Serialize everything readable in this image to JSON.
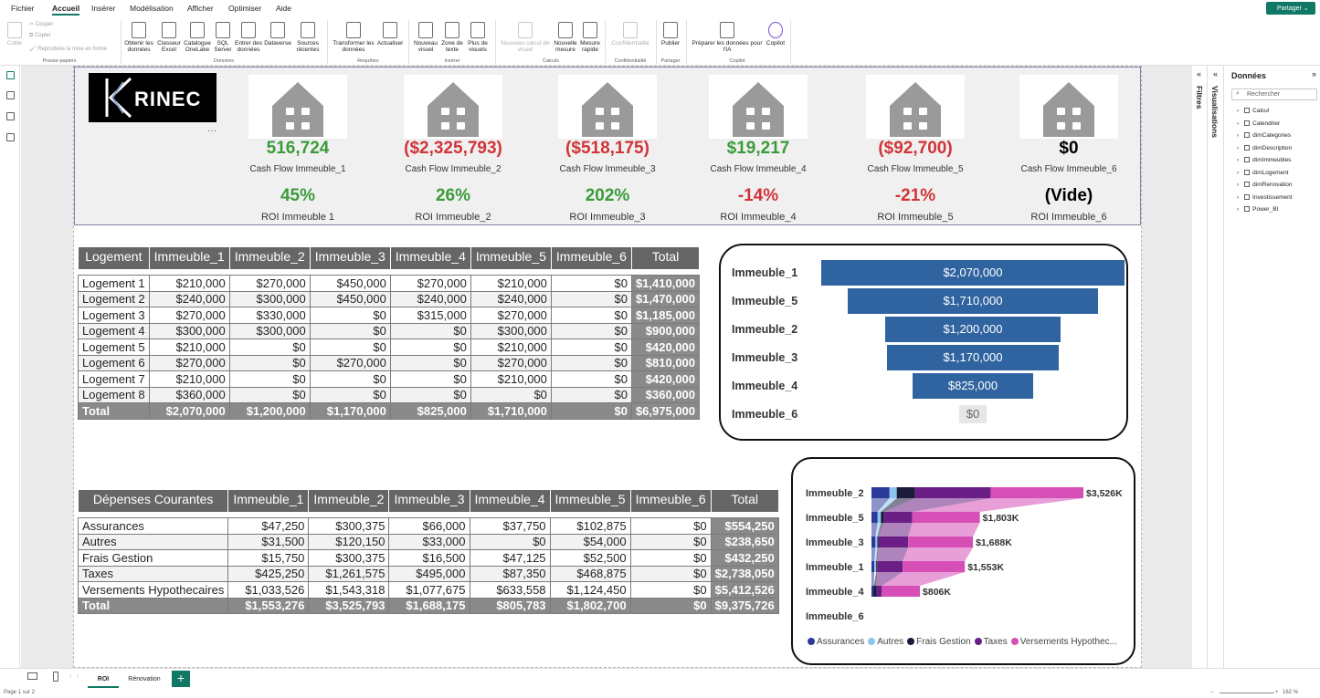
{
  "menu": {
    "items": [
      "Fichier",
      "Accueil",
      "Insérer",
      "Modélisation",
      "Afficher",
      "Optimiser",
      "Aide"
    ],
    "share": "Partager"
  },
  "ribbon": {
    "clipboard": {
      "paste": "Coller",
      "cut": "Couper",
      "copy": "Copier",
      "format": "Reproduire la mise en forme",
      "group": "Presse-papiers"
    },
    "data": {
      "get": "Obtenir les données",
      "excel": "Classeur Excel",
      "onelake": "Catalogue OneLake",
      "sql": "SQL Server",
      "enter": "Entrer des données",
      "dataverse": "Dataverse",
      "recent": "Sources récentes",
      "group": "Données"
    },
    "queries": {
      "transform": "Transformer les données",
      "refresh": "Actualiser",
      "group": "Requêtes"
    },
    "insert": {
      "visual": "Nouveau visuel",
      "textbox": "Zone de texte",
      "more": "Plus de visuels",
      "group": "Insérer"
    },
    "calc": {
      "newcalc": "Nouveau calcul de visuel",
      "measure": "Nouvelle mesure",
      "quick": "Mesure rapide",
      "group": "Calculs"
    },
    "sens": {
      "label": "Confidentialité",
      "group": "Confidentialité"
    },
    "share": {
      "publish": "Publier",
      "group": "Partager"
    },
    "copilot": {
      "prep": "Préparer les données pour l'IA",
      "copilot": "Copilot",
      "group": "Copilot"
    }
  },
  "logo": {
    "text": "RINEC"
  },
  "kpis": [
    {
      "cash": "516,724",
      "cash_label": "Cash Flow Immeuble_1",
      "roi": "45%",
      "roi_label": "ROI Immeuble  1"
    },
    {
      "cash": "($2,325,793)",
      "cash_label": "Cash Flow Immeuble_2",
      "roi": "26%",
      "roi_label": "ROI Immeuble_2"
    },
    {
      "cash": "($518,175)",
      "cash_label": "Cash Flow Immeuble_3",
      "roi": "202%",
      "roi_label": "ROI Immeuble_3"
    },
    {
      "cash": "$19,217",
      "cash_label": "Cash Flow Immeuble_4",
      "roi": "-14%",
      "roi_label": "ROI Immeuble_4"
    },
    {
      "cash": "($92,700)",
      "cash_label": "Cash Flow Immeuble_5",
      "roi": "-21%",
      "roi_label": "ROI Immeuble_5"
    },
    {
      "cash": "$0",
      "cash_label": "Cash Flow Immeuble_6",
      "roi": "(Vide)",
      "roi_label": "ROI Immeuble_6"
    }
  ],
  "colors": {
    "positive": "#3b9b3b",
    "negative": "#d13438",
    "funnel": "#2f64a0",
    "header": "#666666",
    "accent": "#117865"
  },
  "logement_table": {
    "headers": [
      "Logement",
      "Immeuble_1",
      "Immeuble_2",
      "Immeuble_3",
      "Immeuble_4",
      "Immeuble_5",
      "Immeuble_6",
      "Total"
    ],
    "rows": [
      [
        "Logement 1",
        "$210,000",
        "$270,000",
        "$450,000",
        "$270,000",
        "$210,000",
        "$0",
        "$1,410,000"
      ],
      [
        "Logement 2",
        "$240,000",
        "$300,000",
        "$450,000",
        "$240,000",
        "$240,000",
        "$0",
        "$1,470,000"
      ],
      [
        "Logement 3",
        "$270,000",
        "$330,000",
        "$0",
        "$315,000",
        "$270,000",
        "$0",
        "$1,185,000"
      ],
      [
        "Logement 4",
        "$300,000",
        "$300,000",
        "$0",
        "$0",
        "$300,000",
        "$0",
        "$900,000"
      ],
      [
        "Logement 5",
        "$210,000",
        "$0",
        "$0",
        "$0",
        "$210,000",
        "$0",
        "$420,000"
      ],
      [
        "Logement 6",
        "$270,000",
        "$0",
        "$270,000",
        "$0",
        "$270,000",
        "$0",
        "$810,000"
      ],
      [
        "Logement 7",
        "$210,000",
        "$0",
        "$0",
        "$0",
        "$210,000",
        "$0",
        "$420,000"
      ],
      [
        "Logement 8",
        "$360,000",
        "$0",
        "$0",
        "$0",
        "$0",
        "$0",
        "$360,000"
      ]
    ],
    "total": [
      "Total",
      "$2,070,000",
      "$1,200,000",
      "$1,170,000",
      "$825,000",
      "$1,710,000",
      "$0",
      "$6,975,000"
    ]
  },
  "depenses_table": {
    "headers": [
      "Dépenses Courantes",
      "Immeuble_1",
      "Immeuble_2",
      "Immeuble_3",
      "Immeuble_4",
      "Immeuble_5",
      "Immeuble_6",
      "Total"
    ],
    "rows": [
      [
        "Assurances",
        "$47,250",
        "$300,375",
        "$66,000",
        "$37,750",
        "$102,875",
        "$0",
        "$554,250"
      ],
      [
        "Autres",
        "$31,500",
        "$120,150",
        "$33,000",
        "$0",
        "$54,000",
        "$0",
        "$238,650"
      ],
      [
        "Frais Gestion",
        "$15,750",
        "$300,375",
        "$16,500",
        "$47,125",
        "$52,500",
        "$0",
        "$432,250"
      ],
      [
        "Taxes",
        "$425,250",
        "$1,261,575",
        "$495,000",
        "$87,350",
        "$468,875",
        "$0",
        "$2,738,050"
      ],
      [
        "Versements Hypothecaires",
        "$1,033,526",
        "$1,543,318",
        "$1,077,675",
        "$633,558",
        "$1,124,450",
        "$0",
        "$5,412,526"
      ]
    ],
    "total": [
      "Total",
      "$1,553,276",
      "$3,525,793",
      "$1,688,175",
      "$805,783",
      "$1,802,700",
      "$0",
      "$9,375,726"
    ]
  },
  "chart_data": [
    {
      "type": "bar",
      "subtype": "funnel",
      "categories": [
        "Immeuble_1",
        "Immeuble_5",
        "Immeuble_2",
        "Immeuble_3",
        "Immeuble_4",
        "Immeuble_6"
      ],
      "values": [
        2070000,
        1710000,
        1200000,
        1170000,
        825000,
        0
      ],
      "labels": [
        "$2,070,000",
        "$1,710,000",
        "$1,200,000",
        "$1,170,000",
        "$825,000",
        "$0"
      ]
    },
    {
      "type": "bar",
      "subtype": "ribbon-stacked",
      "orientation": "horizontal",
      "categories": [
        "Immeuble_2",
        "Immeuble_5",
        "Immeuble_3",
        "Immeuble_1",
        "Immeuble_4",
        "Immeuble_6"
      ],
      "totals_label": [
        "$3,526K",
        "$1,803K",
        "$1,688K",
        "$1,553K",
        "$806K",
        ""
      ],
      "series": [
        {
          "name": "Assurances",
          "color": "#2b3a9a",
          "values": [
            300375,
            102875,
            66000,
            47250,
            37750,
            0
          ]
        },
        {
          "name": "Autres",
          "color": "#8cc6ee",
          "values": [
            120150,
            54000,
            33000,
            31500,
            0,
            0
          ]
        },
        {
          "name": "Frais Gestion",
          "color": "#1a1a3a",
          "values": [
            300375,
            52500,
            16500,
            15750,
            47125,
            0
          ]
        },
        {
          "name": "Taxes",
          "color": "#6b1f86",
          "values": [
            1261575,
            468875,
            495000,
            425250,
            87350,
            0
          ]
        },
        {
          "name": "Versements Hypothec...",
          "color": "#d64fb7",
          "values": [
            1543318,
            1124450,
            1077675,
            1033526,
            633558,
            0
          ]
        }
      ],
      "xlim": [
        0,
        3525793
      ]
    }
  ],
  "panes": {
    "filters": "Filtres",
    "viz": "Visualisations",
    "data_title": "Données",
    "search": "Rechercher",
    "tables": [
      "Calcul",
      "Calendrier",
      "dimCategories",
      "dimDescription",
      "dimImmeubles",
      "dimLogement",
      "dimRenovation",
      "Investissement",
      "Power_BI"
    ]
  },
  "pages": {
    "tabs": [
      "ROI",
      "Rénovation"
    ],
    "add": "+"
  },
  "status": {
    "page": "Page 1 sur 2",
    "zoom": "162 %"
  }
}
